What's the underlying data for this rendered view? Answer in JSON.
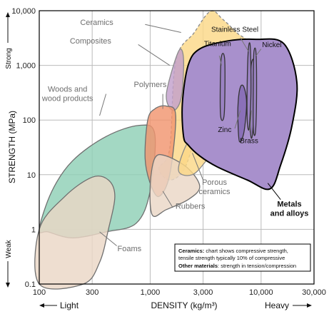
{
  "chart_data": {
    "type": "area",
    "title": "",
    "xlabel": "DENSITY (kg/m³)",
    "ylabel": "STRENGTH (MPa)",
    "xscale": "log",
    "yscale": "log",
    "xlim": [
      100,
      30000
    ],
    "ylim": [
      0.1,
      10000
    ],
    "x_ticks": [
      {
        "value": 100,
        "label": "100"
      },
      {
        "value": 300,
        "label": "300"
      },
      {
        "value": 1000,
        "label": "1,000"
      },
      {
        "value": 3000,
        "label": "3,000"
      },
      {
        "value": 10000,
        "label": "10,000"
      },
      {
        "value": 30000,
        "label": "30,000"
      }
    ],
    "y_ticks": [
      {
        "value": 0.1,
        "label": "0.1"
      },
      {
        "value": 1,
        "label": "1"
      },
      {
        "value": 10,
        "label": "10"
      },
      {
        "value": 100,
        "label": "100"
      },
      {
        "value": 1000,
        "label": "1,000"
      },
      {
        "value": 10000,
        "label": "10,000"
      }
    ],
    "grid": true,
    "axis_annotations": {
      "y_top": "Strong",
      "y_bottom": "Weak",
      "x_left": "Light",
      "x_right": "Heavy"
    },
    "regions": [
      {
        "id": "ceramics",
        "name": "Ceramics",
        "color": "#fbd888",
        "stroke": "#8a8a8a",
        "dashed": true,
        "label_x": 330,
        "label_y": 5500,
        "points": [
          [
            1500,
            30
          ],
          [
            1700,
            1200
          ],
          [
            2500,
            4000
          ],
          [
            3500,
            9800
          ],
          [
            4500,
            7000
          ],
          [
            6000,
            4000
          ],
          [
            8000,
            2200
          ],
          [
            6000,
            600
          ],
          [
            4000,
            200
          ],
          [
            3000,
            80
          ],
          [
            2500,
            40
          ],
          [
            2000,
            12
          ],
          [
            1500,
            8
          ],
          [
            1200,
            13
          ]
        ]
      },
      {
        "id": "composites",
        "name": "Composites",
        "color": "#c2a0cc",
        "stroke": "#8a8a8a",
        "dashed": false,
        "label_x": 290,
        "label_y": 2500,
        "points": [
          [
            1400,
            300
          ],
          [
            1800,
            1800
          ],
          [
            2000,
            1300
          ],
          [
            1900,
            250
          ],
          [
            1600,
            150
          ]
        ]
      },
      {
        "id": "woods",
        "name": "Woods and wood products",
        "color": "#8fcfb6",
        "stroke": "#6f6f6f",
        "dashed": false,
        "label_x": 180,
        "label_y": 330,
        "points": [
          [
            100,
            1
          ],
          [
            130,
            5
          ],
          [
            200,
            18
          ],
          [
            400,
            50
          ],
          [
            800,
            80
          ],
          [
            1100,
            55
          ],
          [
            1000,
            5
          ],
          [
            750,
            1.3
          ],
          [
            400,
            0.9
          ],
          [
            200,
            0.7
          ],
          [
            120,
            0.9
          ]
        ]
      },
      {
        "id": "foams",
        "name": "Foams",
        "color": "#ead7c6",
        "stroke": "#6f6f6f",
        "dashed": false,
        "label_x": 650,
        "label_y": 0.4,
        "points": [
          [
            100,
            1
          ],
          [
            170,
            4
          ],
          [
            300,
            9
          ],
          [
            420,
            8
          ],
          [
            480,
            4
          ],
          [
            420,
            1
          ],
          [
            350,
            0.25
          ],
          [
            250,
            0.1
          ],
          [
            100,
            0.1
          ]
        ]
      },
      {
        "id": "polymers",
        "name": "Polymers",
        "color": "#f2956f",
        "stroke": "#6f6f6f",
        "dashed": false,
        "label_x": 1000,
        "label_y": 400,
        "points": [
          [
            900,
            20
          ],
          [
            950,
            100
          ],
          [
            1100,
            160
          ],
          [
            1400,
            180
          ],
          [
            1700,
            120
          ],
          [
            1500,
            10
          ],
          [
            1200,
            4
          ],
          [
            1000,
            7
          ]
        ]
      },
      {
        "id": "rubbers",
        "name": "Rubbers",
        "color": "#ead7c6",
        "stroke": "#6f6f6f",
        "dashed": false,
        "label_x": 2300,
        "label_y": 2.4,
        "points": [
          [
            1000,
            6
          ],
          [
            1050,
            1.8
          ],
          [
            1400,
            2.3
          ],
          [
            2200,
            3.5
          ],
          [
            2800,
            6
          ],
          [
            2200,
            13
          ],
          [
            1400,
            22
          ],
          [
            1100,
            20
          ]
        ]
      },
      {
        "id": "porous-ceramics",
        "name": "Porous ceramics",
        "color": "#fbd888",
        "stroke": "#8a8a8a",
        "dashed": false,
        "label_x": 3800,
        "label_y": 6.5,
        "points": [
          [
            1800,
            12
          ],
          [
            2400,
            10
          ],
          [
            3200,
            18
          ],
          [
            3800,
            30
          ],
          [
            3000,
            60
          ],
          [
            2200,
            40
          ]
        ]
      },
      {
        "id": "metals",
        "name": "Metals and alloys",
        "color": "#a890cc",
        "stroke": "#000000",
        "dashed": false,
        "label_x": 18000,
        "label_y": 2.6,
        "points": [
          [
            2000,
            50
          ],
          [
            1950,
            200
          ],
          [
            2200,
            1000
          ],
          [
            2800,
            2000
          ],
          [
            5000,
            2800
          ],
          [
            9000,
            3000
          ],
          [
            16000,
            2500
          ],
          [
            21000,
            500
          ],
          [
            19000,
            80
          ],
          [
            15000,
            15
          ],
          [
            12000,
            5.5
          ],
          [
            7500,
            8
          ],
          [
            4000,
            14
          ],
          [
            2800,
            22
          ],
          [
            2200,
            35
          ]
        ]
      },
      {
        "id": "titanium",
        "name": "Titanium",
        "color": "#9a82c2",
        "stroke": "#333333",
        "dashed": false,
        "label_x": 4050,
        "label_y": 2250,
        "points": [
          [
            4300,
            130
          ],
          [
            4650,
            130
          ],
          [
            4700,
            1250
          ],
          [
            4350,
            1250
          ]
        ]
      },
      {
        "id": "zinc",
        "name": "Zinc",
        "color": "#8a70b8",
        "stroke": "#333333",
        "dashed": false,
        "label_x": 4700,
        "label_y": 60,
        "points": [
          [
            6200,
            80
          ],
          [
            6400,
            40
          ],
          [
            7000,
            60
          ],
          [
            7400,
            200
          ],
          [
            7000,
            400
          ],
          [
            6500,
            400
          ],
          [
            6200,
            200
          ]
        ]
      },
      {
        "id": "brass",
        "name": "Brass",
        "color": "#9a82c2",
        "stroke": "#333333",
        "dashed": false,
        "label_x": 7800,
        "label_y": 38,
        "points": [
          [
            8000,
            70
          ],
          [
            8300,
            50
          ],
          [
            8700,
            200
          ],
          [
            8600,
            1100
          ],
          [
            8200,
            1100
          ],
          [
            8000,
            500
          ]
        ]
      },
      {
        "id": "stainless-steel",
        "name": "Stainless Steel",
        "color": "#9a82c2",
        "stroke": "#333333",
        "dashed": false,
        "label_x": 5800,
        "label_y": 4100,
        "points": [
          [
            7500,
            100
          ],
          [
            7800,
            70
          ],
          [
            8100,
            300
          ],
          [
            8000,
            2100
          ],
          [
            7700,
            2100
          ],
          [
            7500,
            500
          ]
        ]
      },
      {
        "id": "nickel",
        "name": "Nickel",
        "color": "#9a82c2",
        "stroke": "#333333",
        "dashed": false,
        "label_x": 12500,
        "label_y": 2150,
        "points": [
          [
            8500,
            70
          ],
          [
            8900,
            60
          ],
          [
            9100,
            300
          ],
          [
            9000,
            1700
          ],
          [
            8600,
            1700
          ],
          [
            8500,
            400
          ]
        ]
      }
    ],
    "leaders": [
      {
        "region": "ceramics",
        "from": [
          900,
          5600
        ],
        "to": [
          1900,
          4000
        ]
      },
      {
        "region": "composites",
        "from": [
          780,
          2400
        ],
        "to": [
          1500,
          1000
        ]
      },
      {
        "region": "woods",
        "from": [
          400,
          300
        ],
        "to": [
          350,
          120
        ]
      },
      {
        "region": "foams",
        "from": [
          500,
          0.5
        ],
        "to": [
          350,
          0.9
        ]
      },
      {
        "region": "polymers",
        "from": [
          1300,
          300
        ],
        "to": [
          1300,
          160
        ]
      },
      {
        "region": "rubbers",
        "from": [
          1600,
          2.5
        ],
        "to": [
          1300,
          5
        ]
      },
      {
        "region": "porous-ceramics",
        "from": [
          3000,
          8
        ],
        "to": [
          2400,
          25
        ]
      },
      {
        "region": "titanium",
        "from": [
          4200,
          1500
        ],
        "to": [
          4400,
          1000
        ]
      },
      {
        "region": "stainless-steel",
        "from": [
          6500,
          3200
        ],
        "to": [
          7700,
          1800
        ]
      },
      {
        "region": "nickel",
        "from": [
          10000,
          2000
        ],
        "to": [
          9000,
          1500
        ]
      },
      {
        "region": "zinc",
        "from": [
          5800,
          70
        ],
        "to": [
          6500,
          150
        ]
      },
      {
        "region": "brass",
        "from": [
          7900,
          60
        ],
        "to": [
          8200,
          150
        ]
      },
      {
        "region": "metals",
        "from": [
          15000,
          3.5
        ],
        "to": [
          11500,
          7
        ]
      }
    ],
    "note": {
      "line1_bold": "Ceramics:",
      "line1_rest": " chart shows compressive strength,",
      "line2": "tensile strength typically 10% of compressive",
      "line3_bold": "Other materials",
      "line3_rest": ": strength in tension/compression"
    }
  }
}
